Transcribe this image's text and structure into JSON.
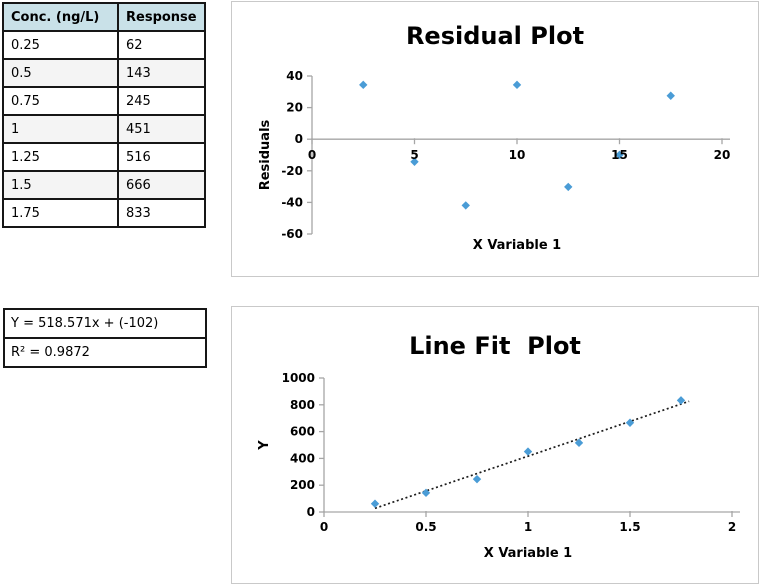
{
  "data_table": {
    "headers": [
      "Conc. (ng/L)",
      "Response"
    ],
    "rows": [
      [
        "0.25",
        "62"
      ],
      [
        "0.5",
        "143"
      ],
      [
        "0.75",
        "245"
      ],
      [
        "1",
        "451"
      ],
      [
        "1.25",
        "516"
      ],
      [
        "1.5",
        "666"
      ],
      [
        "1.75",
        "833"
      ]
    ]
  },
  "regression": {
    "equation": "Y = 518.571x + (-102)",
    "r_squared": "R² = 0.9872"
  },
  "colors": {
    "marker": "#4a9cd6",
    "axis": "#a6a6a6",
    "trendline": "#1b1b1b",
    "table_header_bg": "#c9e1e8",
    "chart_border": "#c9c9c9"
  },
  "chart_data": [
    {
      "id": "residual",
      "type": "scatter",
      "title": "Residual Plot",
      "xlabel": "X Variable 1",
      "ylabel": "Residuals",
      "xlim": [
        0,
        20
      ],
      "ylim": [
        -60,
        40
      ],
      "xticks": [
        0,
        5,
        10,
        15,
        20
      ],
      "xtick_labels": [
        "0",
        "5",
        "10",
        "15",
        "20"
      ],
      "yticks": [
        -60,
        -40,
        -20,
        0,
        20,
        40
      ],
      "ytick_labels": [
        "-60",
        "-40",
        "-20",
        "0",
        "20",
        "40"
      ],
      "x_axis_at_y": 0,
      "grid": false,
      "legend": null,
      "points": [
        [
          2.5,
          34.4
        ],
        [
          5,
          -14.3
        ],
        [
          7.5,
          -41.9
        ],
        [
          10,
          34.4
        ],
        [
          12.5,
          -30.2
        ],
        [
          15,
          -9.9
        ],
        [
          17.5,
          27.5
        ]
      ]
    },
    {
      "id": "linefit",
      "type": "scatter",
      "title": "Line Fit  Plot",
      "xlabel": "X Variable 1",
      "ylabel": "Y",
      "xlim": [
        0,
        2
      ],
      "ylim": [
        0,
        1000
      ],
      "xticks": [
        0,
        0.5,
        1,
        1.5,
        2
      ],
      "xtick_labels": [
        "0",
        "0.5",
        "1",
        "1.5",
        "2"
      ],
      "yticks": [
        0,
        200,
        400,
        600,
        800,
        1000
      ],
      "ytick_labels": [
        "0",
        "200",
        "400",
        "600",
        "800",
        "1000"
      ],
      "x_axis_at_y": 0,
      "grid": false,
      "legend": null,
      "points": [
        [
          0.25,
          62
        ],
        [
          0.5,
          143
        ],
        [
          0.75,
          245
        ],
        [
          1,
          451
        ],
        [
          1.25,
          516
        ],
        [
          1.5,
          666
        ],
        [
          1.75,
          833
        ]
      ],
      "trendline": {
        "slope": 518.571,
        "intercept": -102,
        "x_start": 0.25,
        "x_end": 1.79,
        "style": "dotted"
      }
    }
  ]
}
